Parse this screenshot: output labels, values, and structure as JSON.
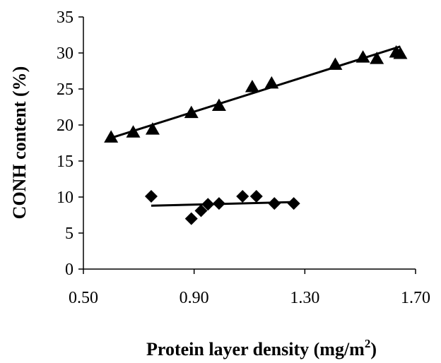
{
  "chart_data": {
    "type": "scatter",
    "xlabel": "Protein layer density (mg/m2)",
    "xlabel_parts": {
      "prefix": "Protein layer density (mg/m",
      "sup": "2",
      "suffix": ")"
    },
    "ylabel": "CONH content (%)",
    "xlim": [
      0.5,
      1.7
    ],
    "ylim": [
      0,
      35
    ],
    "x_ticks": [
      0.5,
      0.9,
      1.3,
      1.7
    ],
    "x_tick_labels": [
      "0.50",
      "0.90",
      "1.30",
      "1.70"
    ],
    "y_ticks": [
      0,
      5,
      10,
      15,
      20,
      25,
      30,
      35
    ],
    "y_tick_labels": [
      "0",
      "5",
      "10",
      "15",
      "20",
      "25",
      "30",
      "35"
    ],
    "grid": false,
    "legend": "none",
    "series": [
      {
        "marker": "triangle",
        "color": "#000000",
        "x": [
          0.6,
          0.68,
          0.75,
          0.89,
          0.99,
          1.11,
          1.18,
          1.41,
          1.51,
          1.56,
          1.63,
          1.645
        ],
        "y": [
          18.3,
          19.0,
          19.4,
          21.7,
          22.7,
          25.3,
          25.8,
          28.4,
          29.4,
          29.2,
          30.1,
          29.9
        ],
        "trendline": {
          "x": [
            0.6,
            1.645
          ],
          "y": [
            18.2,
            30.9
          ]
        }
      },
      {
        "marker": "diamond",
        "color": "#000000",
        "x": [
          0.745,
          0.89,
          0.925,
          0.95,
          0.99,
          1.075,
          1.125,
          1.19,
          1.26
        ],
        "y": [
          10.1,
          7.0,
          8.1,
          9.0,
          9.1,
          10.1,
          10.1,
          9.1,
          9.1
        ],
        "trendline": {
          "x": [
            0.745,
            1.26
          ],
          "y": [
            8.8,
            9.3
          ]
        }
      }
    ]
  }
}
